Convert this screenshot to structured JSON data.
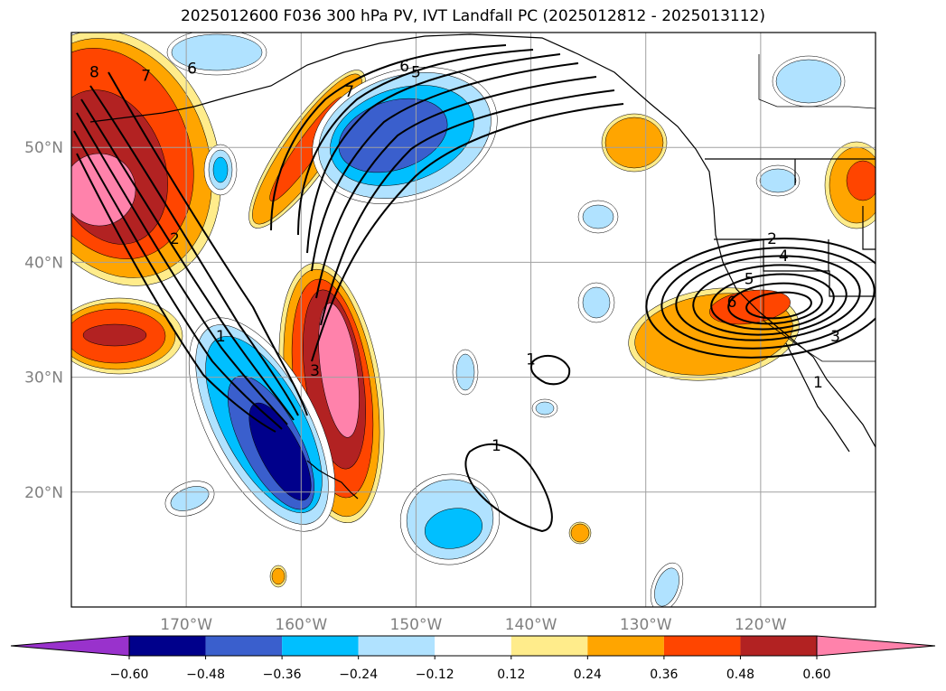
{
  "title": "2025012600 F036 300 hPa PV, IVT Landfall PC (2025012812 - 2025013112)",
  "map": {
    "projection": "PlateCarree",
    "lon_range": [
      -180,
      -110
    ],
    "lat_range": [
      10,
      60
    ],
    "lon_ticks": [
      {
        "lon": -170,
        "label": "170°W"
      },
      {
        "lon": -160,
        "label": "160°W"
      },
      {
        "lon": -150,
        "label": "150°W"
      },
      {
        "lon": -140,
        "label": "140°W"
      },
      {
        "lon": -130,
        "label": "130°W"
      },
      {
        "lon": -120,
        "label": "120°W"
      }
    ],
    "lat_ticks": [
      {
        "lat": 20,
        "label": "20°N"
      },
      {
        "lat": 30,
        "label": "30°N"
      },
      {
        "lat": 40,
        "label": "40°N"
      },
      {
        "lat": 50,
        "label": "50°N"
      }
    ],
    "gridlines": true,
    "tick_color": "#808080"
  },
  "colorbar": {
    "levels": [
      "−0.60",
      "−0.48",
      "−0.36",
      "−0.24",
      "−0.12",
      "0.12",
      "0.24",
      "0.36",
      "0.48",
      "0.60"
    ],
    "colors": [
      "#9932cc",
      "#00008b",
      "#3a5fcd",
      "#00bfff",
      "#b0e2ff",
      "#ffffff",
      "#ffec8b",
      "#ffa500",
      "#ff4500",
      "#b22222",
      "#ff82ab"
    ],
    "extend": "both"
  },
  "contour_labels": [
    {
      "text": "8",
      "lon": -178,
      "lat": 56.5
    },
    {
      "text": "7",
      "lon": -173.5,
      "lat": 56.2
    },
    {
      "text": "6",
      "lon": -169.5,
      "lat": 56.8
    },
    {
      "text": "7",
      "lon": -155.8,
      "lat": 54.8
    },
    {
      "text": "6",
      "lon": -151,
      "lat": 57
    },
    {
      "text": "5",
      "lon": -150,
      "lat": 56.5
    },
    {
      "text": "2",
      "lon": -171,
      "lat": 42
    },
    {
      "text": "1",
      "lon": -167,
      "lat": 33.5
    },
    {
      "text": "3",
      "lon": -158.8,
      "lat": 30.5
    },
    {
      "text": "1",
      "lon": -140,
      "lat": 31.5
    },
    {
      "text": "1",
      "lon": -143,
      "lat": 24
    },
    {
      "text": "2",
      "lon": -119,
      "lat": 42
    },
    {
      "text": "4",
      "lon": -118,
      "lat": 40.5
    },
    {
      "text": "5",
      "lon": -121,
      "lat": 38.5
    },
    {
      "text": "6",
      "lon": -122.5,
      "lat": 36.5
    },
    {
      "text": "3",
      "lon": -113.5,
      "lat": 33.5
    },
    {
      "text": "1",
      "lon": -115,
      "lat": 29.5
    }
  ]
}
